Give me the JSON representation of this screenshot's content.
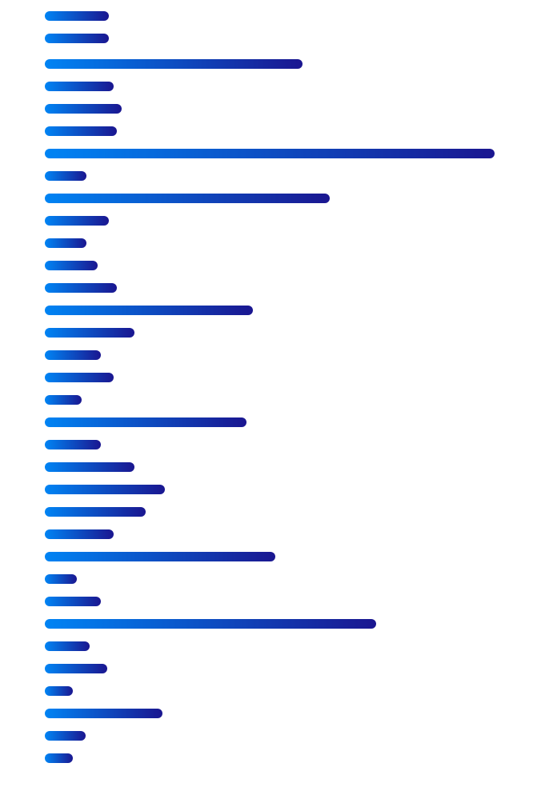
{
  "chart_data": {
    "type": "bar",
    "orientation": "horizontal",
    "title": "",
    "xlabel": "",
    "ylabel": "",
    "grid": false,
    "legend": "none",
    "xlim": [
      0,
      562
    ],
    "values": [
      80,
      80,
      322,
      86,
      96,
      90,
      562,
      52,
      356,
      80,
      52,
      66,
      90,
      260,
      112,
      70,
      86,
      46,
      252,
      70,
      112,
      150,
      126,
      86,
      288,
      40,
      70,
      414,
      56,
      78,
      35,
      147,
      51,
      35
    ],
    "colors": {
      "gradient_start": "#0084f4",
      "gradient_end": "#1a1690"
    }
  }
}
